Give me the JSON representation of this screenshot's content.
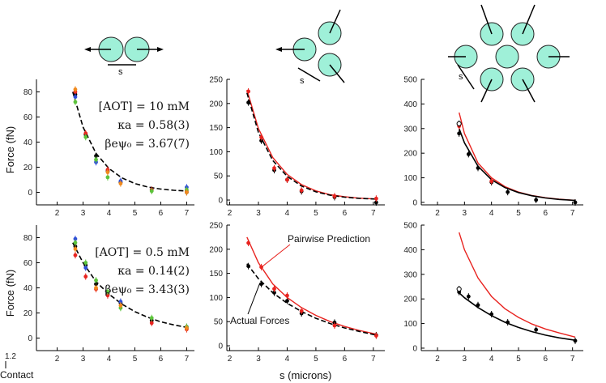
{
  "figure": {
    "ylabel": "Force (fN)",
    "xlabel": "s (microns)",
    "contact_label": "Contact",
    "contact_tick": "1.2",
    "separation_label": "s"
  },
  "chart_data": [
    {
      "type": "scatter",
      "id": "top-left",
      "ylim": [
        -10,
        90
      ],
      "xlim": [
        1.2,
        7.3
      ],
      "yticks": [
        0,
        20,
        40,
        60,
        80
      ],
      "xticks": [
        2,
        3,
        4,
        5,
        6,
        7
      ],
      "annotation": [
        "[AOT] = 10 mM",
        "κa = 0.58(3)",
        "βeψ₀ = 3.67(7)"
      ],
      "series": [
        {
          "name": "black",
          "color": "#000000",
          "x": [
            2.7,
            3.1,
            3.5,
            3.95,
            4.45,
            5.65,
            7.0
          ],
          "y": [
            78,
            46,
            29,
            17,
            8,
            2,
            0
          ]
        },
        {
          "name": "red",
          "color": "#e8231f",
          "x": [
            2.7,
            3.1,
            3.95,
            5.65,
            7.0
          ],
          "y": [
            80,
            47,
            18,
            2,
            1
          ]
        },
        {
          "name": "blue",
          "color": "#2f4fd8",
          "x": [
            2.7,
            3.5,
            4.45,
            7.0
          ],
          "y": [
            76,
            24,
            9,
            4
          ]
        },
        {
          "name": "green",
          "color": "#5cc33b",
          "x": [
            2.7,
            3.1,
            3.5,
            3.95,
            5.65,
            7.0
          ],
          "y": [
            72,
            44,
            26,
            12,
            1,
            2
          ]
        },
        {
          "name": "orange",
          "color": "#f08a1e",
          "x": [
            2.7,
            3.95,
            4.45,
            7.0
          ],
          "y": [
            82,
            16,
            7,
            0
          ]
        }
      ],
      "fit_curve": {
        "color": "#000000",
        "dashed": true,
        "x": [
          2.6,
          3.0,
          3.5,
          4.0,
          4.5,
          5.0,
          5.5,
          6.0,
          6.5,
          7.0
        ],
        "y": [
          80,
          52,
          31,
          19,
          11.5,
          7,
          4.2,
          2.6,
          1.6,
          1.0
        ]
      }
    },
    {
      "type": "scatter",
      "id": "top-middle",
      "ylim": [
        -10,
        250
      ],
      "xlim": [
        1.9,
        7.4
      ],
      "yticks": [
        0,
        50,
        100,
        150,
        200,
        250
      ],
      "xticks": [
        2,
        3,
        4,
        5,
        6,
        7
      ],
      "series": [
        {
          "name": "black",
          "color": "#000000",
          "x": [
            2.65,
            3.1,
            3.55,
            4.0,
            4.5,
            5.65,
            7.1
          ],
          "y": [
            202,
            123,
            62,
            42,
            18,
            6,
            -5
          ]
        },
        {
          "name": "red",
          "color": "#e8231f",
          "x": [
            2.65,
            3.1,
            3.55,
            4.0,
            4.5,
            5.65,
            7.1
          ],
          "y": [
            225,
            130,
            66,
            42,
            20,
            8,
            3
          ]
        }
      ],
      "pairwise_curve": {
        "color": "#e8231f",
        "x": [
          2.6,
          3.0,
          3.5,
          4.0,
          4.5,
          5.0,
          5.5,
          6.0,
          6.5,
          7.1
        ],
        "y": [
          228,
          148,
          88,
          53,
          32,
          19,
          11,
          7,
          4,
          2
        ]
      },
      "fit_curve": {
        "color": "#000000",
        "dashed": true,
        "x": [
          2.6,
          3.0,
          3.5,
          4.0,
          4.5,
          5.0,
          5.5,
          6.0,
          6.5,
          7.1
        ],
        "y": [
          222,
          140,
          82,
          49,
          29,
          17,
          10,
          6,
          3.5,
          2
        ]
      }
    },
    {
      "type": "scatter",
      "id": "top-right",
      "ylim": [
        -10,
        500
      ],
      "xlim": [
        1.4,
        7.4
      ],
      "yticks": [
        0,
        100,
        200,
        300,
        400,
        500
      ],
      "xticks": [
        2,
        3,
        4,
        5,
        6,
        7
      ],
      "series": [
        {
          "name": "black",
          "color": "#000000",
          "x": [
            2.8,
            3.15,
            3.5,
            4.0,
            4.6,
            5.65,
            7.1
          ],
          "y": [
            280,
            196,
            140,
            82,
            42,
            10,
            0
          ]
        },
        {
          "name": "red",
          "color": "#e8231f",
          "x": [
            2.8,
            4.0
          ],
          "y": [
            310,
            86
          ]
        },
        {
          "name": "open",
          "color": "#000000",
          "x": [
            2.8
          ],
          "y": [
            320
          ]
        }
      ],
      "pairwise_curve": {
        "color": "#e8231f",
        "x": [
          2.8,
          3.0,
          3.5,
          4.0,
          4.5,
          5.0,
          5.5,
          6.0,
          6.5,
          7.1
        ],
        "y": [
          365,
          280,
          160,
          100,
          64,
          42,
          28,
          19,
          13,
          8
        ]
      },
      "fit_curve": {
        "color": "#000000",
        "dashed": false,
        "x": [
          2.8,
          3.0,
          3.5,
          4.0,
          4.5,
          5.0,
          5.5,
          6.0,
          6.5,
          7.1
        ],
        "y": [
          300,
          242,
          147,
          92,
          60,
          40,
          27,
          18,
          12,
          8
        ]
      }
    },
    {
      "type": "scatter",
      "id": "bottom-left",
      "ylim": [
        -10,
        90
      ],
      "xlim": [
        1.2,
        7.3
      ],
      "yticks": [
        0,
        20,
        40,
        60,
        80
      ],
      "xticks": [
        2,
        3,
        4,
        5,
        6,
        7
      ],
      "annotation": [
        "[AOT] = 0.5 mM",
        "κa = 0.14(2)",
        "βeψ₀ = 3.43(3)"
      ],
      "series": [
        {
          "name": "black",
          "color": "#000000",
          "x": [
            2.7,
            3.1,
            3.5,
            3.95,
            4.45,
            5.65,
            7.0
          ],
          "y": [
            73,
            58,
            43,
            35,
            28,
            14,
            8
          ]
        },
        {
          "name": "red",
          "color": "#e8231f",
          "x": [
            2.7,
            3.1,
            3.5,
            3.95,
            5.65,
            7.0
          ],
          "y": [
            66,
            49,
            39,
            34,
            12,
            7
          ]
        },
        {
          "name": "blue",
          "color": "#2f4fd8",
          "x": [
            2.7,
            3.1,
            4.45,
            7.0
          ],
          "y": [
            79,
            56,
            29,
            9
          ]
        },
        {
          "name": "green",
          "color": "#5cc33b",
          "x": [
            2.7,
            3.1,
            3.5,
            3.95,
            4.45,
            5.65,
            7.0
          ],
          "y": [
            76,
            60,
            46,
            37,
            24,
            16,
            9
          ]
        },
        {
          "name": "orange",
          "color": "#f08a1e",
          "x": [
            2.7,
            3.5,
            4.45,
            7.0
          ],
          "y": [
            71,
            40,
            26,
            8
          ]
        }
      ],
      "fit_curve": {
        "color": "#000000",
        "dashed": true,
        "x": [
          2.6,
          3.0,
          3.5,
          4.0,
          4.5,
          5.0,
          5.5,
          6.0,
          6.5,
          7.0
        ],
        "y": [
          76,
          60,
          45,
          35,
          27,
          21,
          16.5,
          13,
          10.5,
          8.5
        ]
      }
    },
    {
      "type": "scatter",
      "id": "bottom-middle",
      "ylim": [
        -10,
        250
      ],
      "xlim": [
        1.9,
        7.4
      ],
      "yticks": [
        0,
        50,
        100,
        150,
        200,
        250
      ],
      "xticks": [
        2,
        3,
        4,
        5,
        6,
        7
      ],
      "callouts": [
        "Pairwise Prediction",
        "Actual Forces"
      ],
      "series": [
        {
          "name": "black",
          "color": "#000000",
          "x": [
            2.65,
            3.1,
            3.55,
            4.0,
            4.5,
            5.65,
            7.1
          ],
          "y": [
            165,
            128,
            110,
            93,
            67,
            48,
            22
          ]
        },
        {
          "name": "red",
          "color": "#e8231f",
          "x": [
            2.65,
            3.1,
            3.55,
            4.0,
            4.5,
            5.65,
            7.1
          ],
          "y": [
            213,
            163,
            118,
            104,
            72,
            42,
            21
          ]
        }
      ],
      "pairwise_curve": {
        "color": "#e8231f",
        "x": [
          2.6,
          3.0,
          3.5,
          4.0,
          4.5,
          5.0,
          5.5,
          6.0,
          6.5,
          7.1
        ],
        "y": [
          225,
          172,
          128,
          100,
          79,
          63,
          50,
          40,
          32,
          24
        ]
      },
      "fit_curve": {
        "color": "#000000",
        "dashed": true,
        "x": [
          2.6,
          3.0,
          3.5,
          4.0,
          4.5,
          5.0,
          5.5,
          6.0,
          6.5,
          7.1
        ],
        "y": [
          170,
          139,
          110,
          88,
          71,
          57,
          46,
          37,
          30,
          22
        ]
      }
    },
    {
      "type": "scatter",
      "id": "bottom-right",
      "ylim": [
        -10,
        500
      ],
      "xlim": [
        1.4,
        7.4
      ],
      "yticks": [
        0,
        100,
        200,
        300,
        400,
        500
      ],
      "xticks": [
        2,
        3,
        4,
        5,
        6,
        7
      ],
      "series": [
        {
          "name": "black",
          "color": "#000000",
          "x": [
            2.8,
            3.15,
            3.5,
            4.0,
            4.6,
            5.65,
            7.1
          ],
          "y": [
            228,
            210,
            175,
            138,
            105,
            75,
            30
          ]
        },
        {
          "name": "open",
          "color": "#000000",
          "x": [
            2.8
          ],
          "y": [
            240
          ]
        }
      ],
      "pairwise_curve": {
        "color": "#e8231f",
        "x": [
          2.8,
          3.0,
          3.5,
          4.0,
          4.5,
          5.0,
          5.5,
          6.0,
          6.5,
          7.1
        ],
        "y": [
          470,
          400,
          285,
          210,
          160,
          125,
          98,
          78,
          62,
          45
        ]
      },
      "fit_curve": {
        "color": "#000000",
        "dashed": false,
        "x": [
          2.8,
          3.0,
          3.5,
          4.0,
          4.5,
          5.0,
          5.5,
          6.0,
          6.5,
          7.1
        ],
        "y": [
          225,
          205,
          165,
          132,
          105,
          84,
          67,
          53,
          42,
          32
        ]
      }
    }
  ]
}
